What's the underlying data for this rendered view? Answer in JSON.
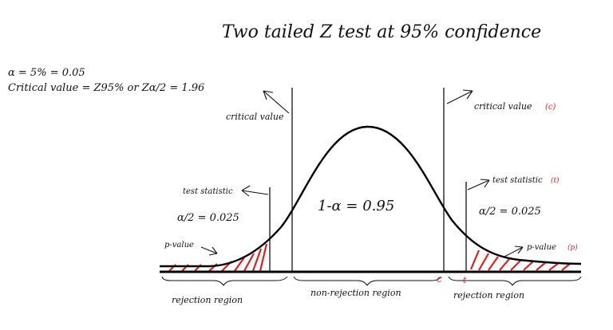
{
  "title": "Two tailed Z test at 95% confidence",
  "alpha_line": "α = 5% = 0.05",
  "critical_line": "Critical value = Z95% or Zα/2 = 1.96",
  "labels": {
    "critical_value_left": "critical value",
    "critical_value_right": "critical value",
    "critical_value_right_mark": "(c)",
    "test_statistic_left": "test statistic",
    "test_statistic_right": "test statistic",
    "test_statistic_right_mark": "(t)",
    "p_value_left": "p-value",
    "p_value_right": "p-value",
    "p_value_right_mark": "(p)",
    "alpha_half_left": "α/2 = 0.025",
    "alpha_half_right": "α/2 = 0.025",
    "center": "1-α = 0.95",
    "c_mark": "c",
    "t_mark": "t",
    "rejection_left": "rejection region",
    "non_rejection": "non-rejection region",
    "rejection_right": "rejection region"
  },
  "colors": {
    "ink": "#111111",
    "accent": "#e02020",
    "curve": "#000000"
  }
}
